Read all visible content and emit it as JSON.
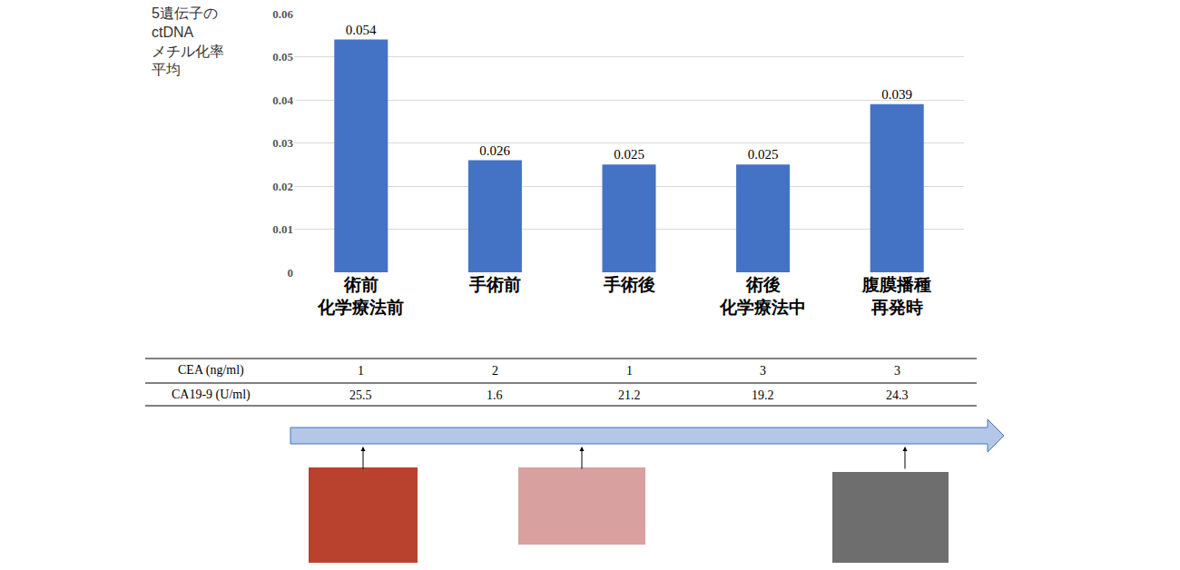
{
  "chart_data": {
    "type": "bar",
    "y_label": "5遺伝子の\nctDNA\nメチル化率\n平均",
    "categories": [
      "術前\n化学療法前",
      "手術前",
      "手術後",
      "術後\n化学療法中",
      "腹膜播種\n再発時"
    ],
    "values": [
      0.054,
      0.026,
      0.025,
      0.025,
      0.039
    ],
    "color": "#4472c4",
    "ylim": [
      0,
      0.06
    ],
    "yticks": [
      0,
      0.01,
      0.02,
      0.03,
      0.04,
      0.05,
      0.06
    ],
    "grid": true,
    "data_labels": true
  },
  "table": {
    "rows": [
      {
        "label": "CEA (ng/ml)",
        "values": [
          1,
          2,
          1,
          3,
          3
        ]
      },
      {
        "label": "CA19-9 (U/ml)",
        "values": [
          25.5,
          1.6,
          21.2,
          19.2,
          24.3
        ]
      }
    ]
  }
}
